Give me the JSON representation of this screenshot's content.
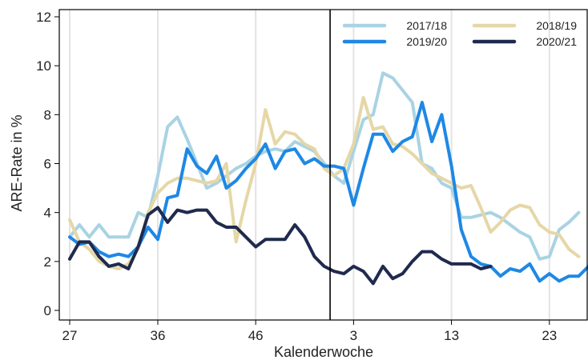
{
  "chart_data": {
    "type": "line",
    "xlabel": "Kalenderwoche",
    "ylabel": "ARE-Rate in %",
    "ylim": [
      0,
      12
    ],
    "yticks": [
      0,
      2,
      4,
      6,
      8,
      10,
      12
    ],
    "xticks": [
      {
        "index": 0,
        "label": "27"
      },
      {
        "index": 9,
        "label": "36"
      },
      {
        "index": 19,
        "label": "46"
      },
      {
        "index": 29,
        "label": "3"
      },
      {
        "index": 39,
        "label": "13"
      },
      {
        "index": 49,
        "label": "23"
      }
    ],
    "vertical_marker_index": 26.6,
    "legend_position": "top-right",
    "series": [
      {
        "name": "2017/18",
        "color": "#a9d3e3",
        "values": [
          3.0,
          3.5,
          3.0,
          3.5,
          3.0,
          3.0,
          3.0,
          4.0,
          3.8,
          5.5,
          7.5,
          7.9,
          7.0,
          6.0,
          5.0,
          5.2,
          5.5,
          5.8,
          6.0,
          6.3,
          6.5,
          6.6,
          6.5,
          6.9,
          6.7,
          6.5,
          6.0,
          5.5,
          5.2,
          6.5,
          7.8,
          8.0,
          9.7,
          9.5,
          9.0,
          8.5,
          6.0,
          5.8,
          5.2,
          5.0,
          3.8,
          3.8,
          3.9,
          4.0,
          3.8,
          3.5,
          3.2,
          3.0,
          2.1,
          2.2,
          3.3,
          3.6,
          4.0
        ]
      },
      {
        "name": "2018/19",
        "color": "#e5d7a7",
        "values": [
          3.7,
          2.8,
          2.5,
          2.0,
          1.8,
          1.7,
          1.9,
          2.5,
          4.0,
          4.8,
          5.2,
          5.4,
          5.4,
          5.3,
          5.2,
          5.3,
          6.0,
          2.8,
          4.5,
          6.0,
          8.2,
          6.8,
          7.3,
          7.2,
          6.8,
          6.6,
          5.8,
          5.5,
          5.8,
          6.8,
          8.7,
          7.4,
          7.5,
          6.8,
          6.7,
          6.4,
          6.0,
          5.6,
          5.4,
          5.2,
          5.0,
          5.1,
          4.2,
          3.2,
          3.6,
          4.1,
          4.3,
          4.2,
          3.5,
          3.2,
          3.1,
          2.5,
          2.2
        ]
      },
      {
        "name": "2019/20",
        "color": "#1e88e5",
        "values": [
          3.0,
          2.7,
          2.8,
          2.4,
          2.2,
          2.3,
          2.2,
          2.6,
          3.4,
          2.9,
          4.6,
          4.7,
          6.6,
          5.9,
          5.6,
          6.3,
          5.0,
          5.3,
          5.8,
          6.2,
          6.8,
          5.8,
          6.5,
          6.6,
          6.0,
          6.2,
          5.9,
          5.9,
          5.8,
          4.3,
          5.8,
          7.2,
          7.2,
          6.5,
          6.9,
          7.1,
          8.5,
          6.9,
          8.0,
          5.9,
          3.3,
          2.2,
          1.9,
          1.8,
          1.4,
          1.7,
          1.6,
          1.9,
          1.2,
          1.5,
          1.2,
          1.4,
          1.4,
          1.8
        ]
      },
      {
        "name": "2020/21",
        "color": "#1f2a4e",
        "values": [
          2.1,
          2.8,
          2.8,
          2.2,
          1.8,
          1.9,
          1.7,
          2.6,
          3.9,
          4.2,
          3.6,
          4.1,
          4.0,
          4.1,
          4.1,
          3.6,
          3.4,
          3.4,
          3.0,
          2.6,
          2.9,
          2.9,
          2.9,
          3.5,
          3.0,
          2.2,
          1.8,
          1.6,
          1.5,
          1.8,
          1.6,
          1.1,
          1.8,
          1.3,
          1.5,
          2.0,
          2.4,
          2.4,
          2.1,
          1.9,
          1.9,
          1.9,
          1.7,
          1.8
        ]
      }
    ]
  }
}
